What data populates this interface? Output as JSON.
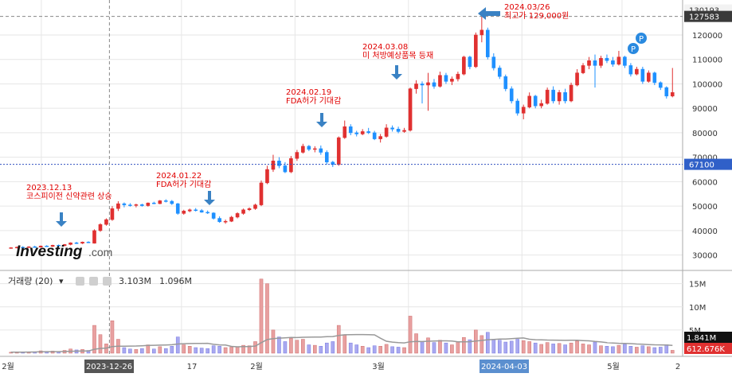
{
  "colors": {
    "up": "#e03030",
    "down": "#1e90ff",
    "up_vol": "#e8a0a0",
    "down_vol": "#a8a8f0",
    "arrow": "#3a82c4",
    "grid": "#e6e6e6",
    "ma_line": "#999999",
    "hline": "#3050c0"
  },
  "chart_data": {
    "type": "candlestick",
    "price_axis": {
      "ticks": [
        30000,
        40000,
        50000,
        60000,
        70000,
        80000,
        90000,
        100000,
        110000,
        120000
      ],
      "tick_labels": [
        "30000",
        "40000",
        "50000",
        "60000",
        "70000",
        "80000",
        "90000",
        "100000",
        "110000",
        "120000"
      ],
      "range": [
        25000,
        133000
      ]
    },
    "volume_axis": {
      "ticks": [
        5000000,
        10000000,
        15000000
      ],
      "tick_labels": [
        "5M",
        "10M",
        "15M"
      ],
      "range": [
        0,
        17000000
      ]
    },
    "time_labels": [
      "2월",
      "17",
      "2월",
      "3월",
      "5월",
      "2"
    ],
    "highlight_time_labels": [
      "2023-12-26",
      "2024-04-03"
    ],
    "price_tags": [
      {
        "label": "130193",
        "value": 130193,
        "style": "light"
      },
      {
        "label": "127583",
        "value": 127583,
        "style": "dark"
      },
      {
        "label": "67100",
        "value": 67100,
        "style": "blue"
      }
    ],
    "volume_tags": [
      {
        "label": "1.841M",
        "style": "dark"
      },
      {
        "label": "612.676K",
        "style": "red"
      }
    ],
    "reference_line": {
      "value": 67100
    },
    "crosshair": {
      "price": 127583,
      "date": "2023-12-26"
    },
    "volume_legend": {
      "label": "거래량 (20)",
      "ma": "3.103M",
      "last": "1.096M"
    },
    "annotations": [
      {
        "date": "2023.12.13",
        "text": "코스피이전 신약관련 상승",
        "at": "2023-12-13"
      },
      {
        "date": "2024.01.22",
        "text": "FDA허가 기대감",
        "at": "2024-01-22"
      },
      {
        "date": "2024.02.19",
        "text": "FDA허가 기대감",
        "at": "2024-02-19"
      },
      {
        "date": "2024.03.08",
        "text": "미 처방예상품목 등재",
        "at": "2024-03-08"
      },
      {
        "date": "2024.03/26",
        "text": "최고가 129,000원",
        "at": "2024-03-26"
      }
    ],
    "candles": [
      {
        "o": 32800,
        "h": 33200,
        "l": 32600,
        "c": 33000,
        "v": 200000
      },
      {
        "o": 33000,
        "h": 33500,
        "l": 32700,
        "c": 33200,
        "v": 250000
      },
      {
        "o": 33200,
        "h": 33600,
        "l": 32900,
        "c": 33100,
        "v": 220000
      },
      {
        "o": 33100,
        "h": 33600,
        "l": 32800,
        "c": 33400,
        "v": 300000
      },
      {
        "o": 33400,
        "h": 33800,
        "l": 33000,
        "c": 33200,
        "v": 280000
      },
      {
        "o": 33200,
        "h": 33900,
        "l": 33000,
        "c": 33700,
        "v": 500000
      },
      {
        "o": 33700,
        "h": 34000,
        "l": 33300,
        "c": 33500,
        "v": 400000
      },
      {
        "o": 33500,
        "h": 34200,
        "l": 33300,
        "c": 34000,
        "v": 450000
      },
      {
        "o": 34000,
        "h": 34300,
        "l": 33600,
        "c": 33800,
        "v": 380000
      },
      {
        "o": 33800,
        "h": 34500,
        "l": 33600,
        "c": 34300,
        "v": 600000
      },
      {
        "o": 34300,
        "h": 35200,
        "l": 34000,
        "c": 35000,
        "v": 900000
      },
      {
        "o": 35000,
        "h": 35400,
        "l": 34500,
        "c": 34800,
        "v": 700000
      },
      {
        "o": 34800,
        "h": 35500,
        "l": 34500,
        "c": 35300,
        "v": 800000
      },
      {
        "o": 35300,
        "h": 35600,
        "l": 34900,
        "c": 35100,
        "v": 600000
      },
      {
        "o": 34800,
        "h": 40500,
        "l": 34700,
        "c": 40000,
        "v": 6000000
      },
      {
        "o": 40000,
        "h": 43000,
        "l": 39500,
        "c": 42500,
        "v": 4000000
      },
      {
        "o": 42500,
        "h": 45000,
        "l": 42000,
        "c": 44500,
        "v": 2000000
      },
      {
        "o": 44500,
        "h": 50000,
        "l": 44000,
        "c": 49000,
        "v": 7000000
      },
      {
        "o": 49000,
        "h": 52000,
        "l": 48000,
        "c": 51000,
        "v": 3000000
      },
      {
        "o": 51000,
        "h": 51500,
        "l": 49500,
        "c": 50500,
        "v": 1200000
      },
      {
        "o": 50500,
        "h": 51200,
        "l": 49800,
        "c": 50300,
        "v": 900000
      },
      {
        "o": 50300,
        "h": 51000,
        "l": 49500,
        "c": 50600,
        "v": 800000
      },
      {
        "o": 50600,
        "h": 51000,
        "l": 49800,
        "c": 50200,
        "v": 1000000
      },
      {
        "o": 50200,
        "h": 51500,
        "l": 49800,
        "c": 51300,
        "v": 1800000
      },
      {
        "o": 51300,
        "h": 51800,
        "l": 50800,
        "c": 51000,
        "v": 900000
      },
      {
        "o": 51000,
        "h": 52500,
        "l": 50800,
        "c": 52200,
        "v": 1400000
      },
      {
        "o": 52200,
        "h": 52800,
        "l": 51500,
        "c": 52000,
        "v": 1000000
      },
      {
        "o": 52000,
        "h": 52500,
        "l": 50500,
        "c": 51000,
        "v": 1500000
      },
      {
        "o": 51000,
        "h": 51300,
        "l": 46500,
        "c": 47000,
        "v": 3500000
      },
      {
        "o": 47000,
        "h": 48500,
        "l": 46500,
        "c": 48000,
        "v": 1800000
      },
      {
        "o": 48000,
        "h": 49000,
        "l": 47500,
        "c": 48500,
        "v": 1500000
      },
      {
        "o": 48500,
        "h": 49200,
        "l": 47800,
        "c": 48200,
        "v": 1200000
      },
      {
        "o": 48200,
        "h": 48800,
        "l": 47300,
        "c": 47500,
        "v": 1100000
      },
      {
        "o": 47500,
        "h": 48200,
        "l": 46800,
        "c": 47200,
        "v": 1000000
      },
      {
        "o": 47200,
        "h": 47500,
        "l": 44500,
        "c": 45000,
        "v": 1600000
      },
      {
        "o": 45000,
        "h": 45800,
        "l": 43200,
        "c": 43600,
        "v": 1500000
      },
      {
        "o": 43600,
        "h": 44500,
        "l": 42800,
        "c": 43800,
        "v": 1200000
      },
      {
        "o": 43800,
        "h": 46000,
        "l": 43500,
        "c": 45500,
        "v": 1300000
      },
      {
        "o": 45500,
        "h": 47500,
        "l": 45000,
        "c": 47000,
        "v": 1400000
      },
      {
        "o": 47000,
        "h": 49000,
        "l": 46500,
        "c": 48500,
        "v": 1700000
      },
      {
        "o": 48500,
        "h": 49500,
        "l": 48000,
        "c": 49000,
        "v": 1600000
      },
      {
        "o": 49000,
        "h": 51000,
        "l": 48500,
        "c": 50500,
        "v": 2500000
      },
      {
        "o": 50500,
        "h": 60500,
        "l": 50000,
        "c": 59500,
        "v": 16000000
      },
      {
        "o": 59500,
        "h": 66500,
        "l": 59000,
        "c": 65000,
        "v": 15000000
      },
      {
        "o": 65000,
        "h": 71000,
        "l": 64000,
        "c": 68500,
        "v": 5000000
      },
      {
        "o": 68500,
        "h": 70000,
        "l": 65500,
        "c": 66500,
        "v": 3500000
      },
      {
        "o": 66500,
        "h": 68000,
        "l": 63500,
        "c": 64000,
        "v": 2500000
      },
      {
        "o": 64000,
        "h": 70500,
        "l": 63500,
        "c": 69500,
        "v": 3200000
      },
      {
        "o": 69500,
        "h": 73000,
        "l": 68500,
        "c": 72000,
        "v": 2800000
      },
      {
        "o": 72000,
        "h": 75500,
        "l": 71500,
        "c": 74500,
        "v": 3000000
      },
      {
        "o": 74500,
        "h": 75000,
        "l": 72500,
        "c": 73200,
        "v": 1800000
      },
      {
        "o": 73200,
        "h": 74500,
        "l": 72000,
        "c": 73500,
        "v": 1700000
      },
      {
        "o": 73500,
        "h": 74800,
        "l": 71000,
        "c": 72000,
        "v": 1500000
      },
      {
        "o": 72000,
        "h": 72800,
        "l": 67000,
        "c": 68000,
        "v": 2200000
      },
      {
        "o": 68000,
        "h": 68500,
        "l": 66000,
        "c": 67000,
        "v": 2500000
      },
      {
        "o": 67000,
        "h": 78500,
        "l": 66500,
        "c": 78000,
        "v": 6000000
      },
      {
        "o": 78000,
        "h": 85000,
        "l": 77500,
        "c": 82500,
        "v": 4000000
      },
      {
        "o": 82500,
        "h": 83500,
        "l": 79000,
        "c": 80000,
        "v": 2200000
      },
      {
        "o": 80000,
        "h": 80800,
        "l": 78500,
        "c": 79500,
        "v": 1800000
      },
      {
        "o": 79500,
        "h": 81500,
        "l": 79000,
        "c": 80500,
        "v": 1500000
      },
      {
        "o": 80500,
        "h": 82000,
        "l": 79500,
        "c": 80000,
        "v": 1200000
      },
      {
        "o": 80000,
        "h": 80800,
        "l": 77000,
        "c": 77500,
        "v": 1600000
      },
      {
        "o": 77500,
        "h": 79500,
        "l": 76000,
        "c": 78500,
        "v": 1500000
      },
      {
        "o": 78500,
        "h": 83500,
        "l": 78000,
        "c": 82000,
        "v": 1900000
      },
      {
        "o": 82000,
        "h": 83000,
        "l": 80500,
        "c": 81500,
        "v": 1400000
      },
      {
        "o": 81500,
        "h": 82500,
        "l": 79800,
        "c": 80500,
        "v": 1300000
      },
      {
        "o": 80500,
        "h": 82000,
        "l": 80000,
        "c": 81000,
        "v": 1200000
      },
      {
        "o": 81000,
        "h": 98500,
        "l": 80500,
        "c": 98000,
        "v": 8000000
      },
      {
        "o": 98000,
        "h": 101500,
        "l": 96000,
        "c": 100000,
        "v": 4200000
      },
      {
        "o": 100000,
        "h": 101000,
        "l": 92000,
        "c": 99500,
        "v": 2500000
      },
      {
        "o": 99500,
        "h": 104500,
        "l": 89000,
        "c": 100500,
        "v": 3300000
      },
      {
        "o": 100500,
        "h": 102000,
        "l": 98000,
        "c": 99000,
        "v": 2300000
      },
      {
        "o": 99000,
        "h": 105000,
        "l": 98500,
        "c": 103500,
        "v": 2800000
      },
      {
        "o": 103500,
        "h": 104500,
        "l": 100000,
        "c": 101000,
        "v": 2200000
      },
      {
        "o": 101000,
        "h": 103000,
        "l": 99500,
        "c": 102000,
        "v": 1800000
      },
      {
        "o": 102000,
        "h": 105000,
        "l": 101000,
        "c": 104000,
        "v": 2500000
      },
      {
        "o": 104000,
        "h": 111500,
        "l": 103500,
        "c": 111000,
        "v": 3400000
      },
      {
        "o": 111000,
        "h": 111500,
        "l": 106000,
        "c": 107000,
        "v": 2900000
      },
      {
        "o": 107000,
        "h": 121000,
        "l": 106500,
        "c": 120000,
        "v": 5000000
      },
      {
        "o": 120000,
        "h": 129000,
        "l": 117000,
        "c": 122000,
        "v": 3800000
      },
      {
        "o": 122000,
        "h": 123000,
        "l": 110000,
        "c": 111000,
        "v": 4500000
      },
      {
        "o": 111000,
        "h": 112500,
        "l": 105500,
        "c": 106500,
        "v": 3000000
      },
      {
        "o": 106500,
        "h": 107500,
        "l": 102000,
        "c": 103000,
        "v": 2800000
      },
      {
        "o": 103000,
        "h": 103800,
        "l": 97000,
        "c": 98000,
        "v": 2400000
      },
      {
        "o": 98000,
        "h": 99000,
        "l": 92000,
        "c": 93000,
        "v": 2600000
      },
      {
        "o": 93000,
        "h": 94000,
        "l": 87000,
        "c": 88000,
        "v": 3000000
      },
      {
        "o": 88000,
        "h": 91500,
        "l": 85500,
        "c": 90500,
        "v": 2700000
      },
      {
        "o": 90500,
        "h": 96500,
        "l": 90000,
        "c": 95000,
        "v": 2500000
      },
      {
        "o": 95000,
        "h": 95500,
        "l": 90000,
        "c": 91000,
        "v": 2200000
      },
      {
        "o": 91000,
        "h": 93500,
        "l": 90000,
        "c": 92000,
        "v": 1900000
      },
      {
        "o": 92000,
        "h": 98500,
        "l": 91500,
        "c": 97500,
        "v": 2300000
      },
      {
        "o": 97500,
        "h": 99000,
        "l": 92000,
        "c": 93000,
        "v": 2000000
      },
      {
        "o": 93000,
        "h": 97500,
        "l": 91500,
        "c": 96500,
        "v": 2100000
      },
      {
        "o": 96500,
        "h": 98000,
        "l": 92000,
        "c": 93000,
        "v": 1800000
      },
      {
        "o": 93000,
        "h": 100500,
        "l": 92500,
        "c": 99500,
        "v": 2200000
      },
      {
        "o": 99500,
        "h": 106000,
        "l": 99000,
        "c": 104500,
        "v": 2600000
      },
      {
        "o": 104500,
        "h": 108500,
        "l": 104000,
        "c": 107500,
        "v": 2000000
      },
      {
        "o": 107500,
        "h": 111000,
        "l": 106000,
        "c": 109500,
        "v": 1800000
      },
      {
        "o": 109500,
        "h": 112000,
        "l": 98500,
        "c": 107500,
        "v": 2400000
      },
      {
        "o": 107500,
        "h": 111500,
        "l": 106500,
        "c": 110500,
        "v": 1600000
      },
      {
        "o": 110500,
        "h": 112000,
        "l": 108500,
        "c": 109500,
        "v": 1500000
      },
      {
        "o": 109500,
        "h": 111000,
        "l": 107000,
        "c": 108000,
        "v": 1400000
      },
      {
        "o": 108000,
        "h": 113500,
        "l": 107500,
        "c": 111000,
        "v": 1700000
      },
      {
        "o": 111000,
        "h": 111500,
        "l": 106500,
        "c": 107500,
        "v": 1900000
      },
      {
        "o": 107500,
        "h": 108500,
        "l": 103000,
        "c": 104000,
        "v": 1500000
      },
      {
        "o": 104000,
        "h": 107000,
        "l": 103500,
        "c": 106000,
        "v": 1300000
      },
      {
        "o": 106000,
        "h": 107000,
        "l": 100000,
        "c": 101000,
        "v": 1600000
      },
      {
        "o": 101000,
        "h": 105500,
        "l": 100500,
        "c": 104500,
        "v": 1400000
      },
      {
        "o": 104500,
        "h": 105000,
        "l": 99500,
        "c": 100500,
        "v": 1200000
      },
      {
        "o": 100500,
        "h": 101000,
        "l": 97500,
        "c": 98500,
        "v": 1300000
      },
      {
        "o": 98500,
        "h": 99000,
        "l": 94000,
        "c": 95000,
        "v": 1841000
      },
      {
        "o": 95000,
        "h": 106500,
        "l": 94500,
        "c": 96500,
        "v": 612676
      }
    ]
  }
}
